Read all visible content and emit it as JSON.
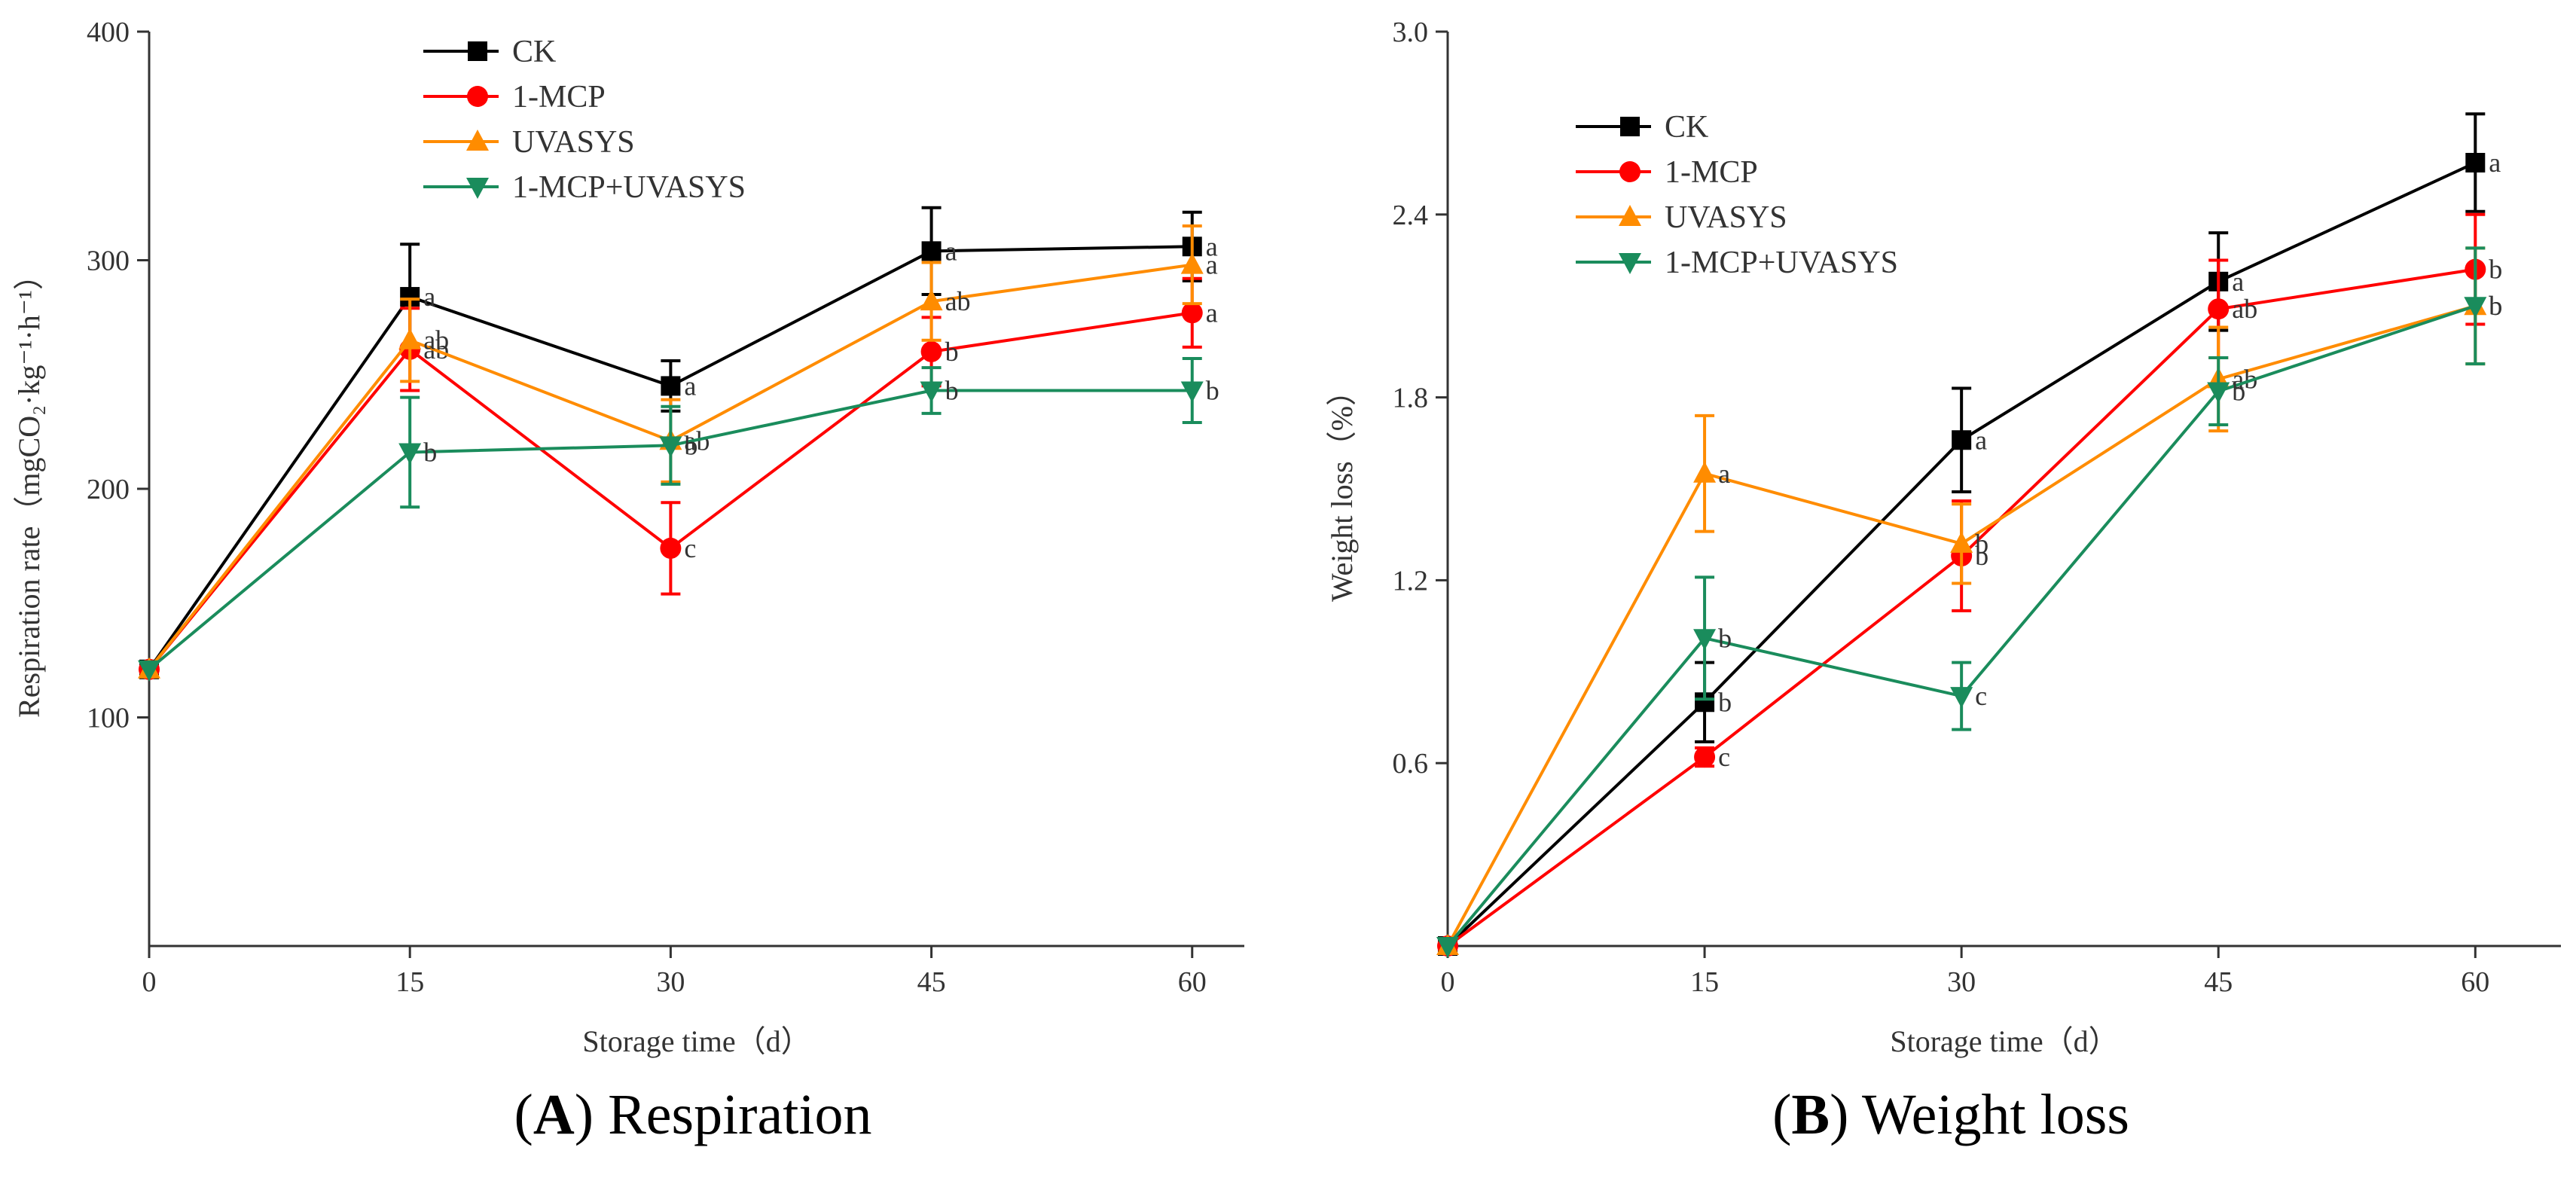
{
  "chart_data": [
    {
      "id": "A",
      "type": "line",
      "caption_letter": "A",
      "caption_text": "Respiration",
      "caption_open": "(",
      "caption_close": ")",
      "xlabel": "Storage time（d）",
      "ylabel": "Respiration rate（mgCO₂·kg⁻¹·h⁻¹）",
      "x": [
        0,
        15,
        30,
        45,
        60
      ],
      "x_ticks": [
        "0",
        "15",
        "30",
        "45",
        "60"
      ],
      "xlim": [
        0,
        63
      ],
      "ylim": [
        0,
        400
      ],
      "y_ticks": [
        100,
        200,
        300,
        400
      ],
      "y_tick_labels": [
        "100",
        "200",
        "300",
        "400"
      ],
      "legend_position": "top-center",
      "series": [
        {
          "name": "CK",
          "color": "#000000",
          "marker": "square",
          "values": [
            121,
            284,
            245,
            304,
            306
          ],
          "errors": [
            0,
            23,
            11,
            19,
            15
          ],
          "labels": [
            "",
            "a",
            "a",
            "a",
            "a"
          ]
        },
        {
          "name": "1-MCP",
          "color": "#ff0000",
          "marker": "circle",
          "values": [
            121,
            261,
            174,
            260,
            277
          ],
          "errors": [
            0,
            18,
            20,
            15,
            15
          ],
          "labels": [
            "",
            "ab",
            "c",
            "b",
            "a"
          ]
        },
        {
          "name": "UVASYS",
          "color": "#ff8c00",
          "marker": "triangle-up",
          "values": [
            121,
            265,
            221,
            282,
            298
          ],
          "errors": [
            0,
            18,
            18,
            17,
            17
          ],
          "labels": [
            "",
            "ab",
            "ab",
            "ab",
            "a"
          ]
        },
        {
          "name": "1-MCP+UVASYS",
          "color": "#1a8c5c",
          "marker": "triangle-down",
          "values": [
            121,
            216,
            219,
            243,
            243
          ],
          "errors": [
            0,
            24,
            17,
            10,
            14
          ],
          "labels": [
            "",
            "b",
            "b",
            "b",
            "b"
          ]
        }
      ]
    },
    {
      "id": "B",
      "type": "line",
      "caption_letter": "B",
      "caption_text": "Weight loss",
      "caption_open": "(",
      "caption_close": ")",
      "xlabel": "Storage time（d）",
      "ylabel": "Weight loss（%）",
      "x": [
        0,
        15,
        30,
        45,
        60
      ],
      "x_ticks": [
        "0",
        "15",
        "30",
        "45",
        "60"
      ],
      "xlim": [
        0,
        65
      ],
      "ylim": [
        0,
        3.0
      ],
      "y_ticks": [
        0.6,
        1.2,
        1.8,
        2.4,
        3.0
      ],
      "y_tick_labels": [
        "0.6",
        "1.2",
        "1.8",
        "2.4",
        "3.0"
      ],
      "legend_position": "top-left",
      "series": [
        {
          "name": "CK",
          "color": "#000000",
          "marker": "square",
          "values": [
            0,
            0.8,
            1.66,
            2.18,
            2.57
          ],
          "errors": [
            0,
            0.13,
            0.17,
            0.16,
            0.16
          ],
          "labels": [
            "",
            "b",
            "a",
            "a",
            "a"
          ]
        },
        {
          "name": "1-MCP",
          "color": "#ff0000",
          "marker": "circle",
          "values": [
            0,
            0.62,
            1.28,
            2.09,
            2.22
          ],
          "errors": [
            0,
            0.03,
            0.18,
            0.16,
            0.18
          ],
          "labels": [
            "",
            "c",
            "b",
            "ab",
            "b"
          ]
        },
        {
          "name": "UVASYS",
          "color": "#ff8c00",
          "marker": "triangle-up",
          "values": [
            0,
            1.55,
            1.32,
            1.86,
            2.1
          ],
          "errors": [
            0,
            0.19,
            0.13,
            0.17,
            0.19
          ],
          "labels": [
            "",
            "a",
            "b",
            "ab",
            "b"
          ]
        },
        {
          "name": "1-MCP+UVASYS",
          "color": "#1a8c5c",
          "marker": "triangle-down",
          "values": [
            0,
            1.01,
            0.82,
            1.82,
            2.1
          ],
          "errors": [
            0,
            0.2,
            0.11,
            0.11,
            0.19
          ],
          "labels": [
            "",
            "b",
            "c",
            "b",
            "b"
          ]
        }
      ]
    }
  ]
}
